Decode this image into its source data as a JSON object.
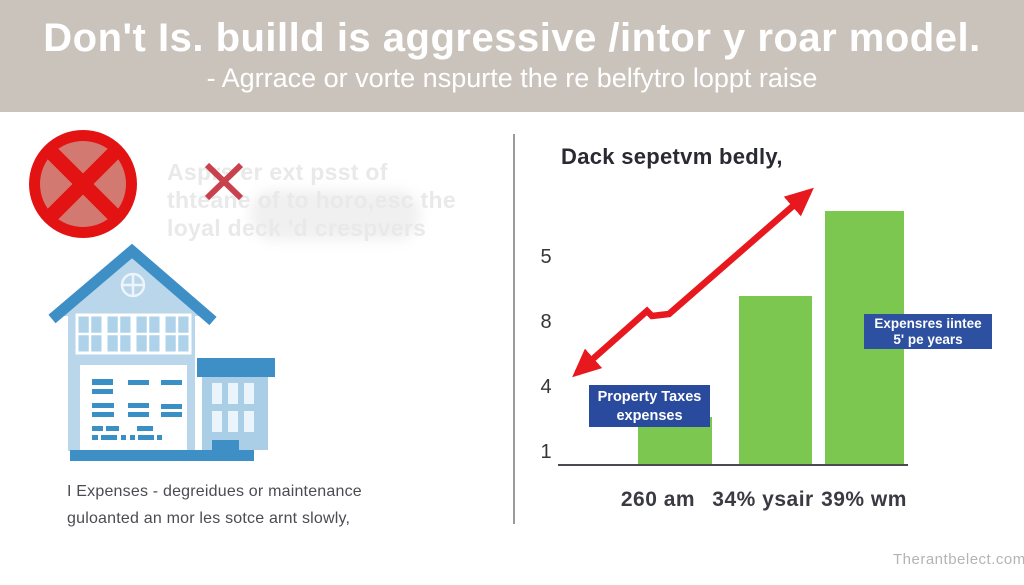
{
  "header": {
    "title": "Don't Is. builld is aggressive /intor y roar model.",
    "subtitle": "- Agrrace or vorte nspurte the re belfytro loppt raise",
    "background": "#cac3bc",
    "text_color": "#ffffff"
  },
  "left": {
    "no_symbol_icon": "red-circle-with-x",
    "no_symbol_color": "#e31313",
    "ghost_text": {
      "line1": "Asprs er ext psst of",
      "line2": "thteane of to horo,esc the",
      "line3": "loyal deck 'd crespvers"
    },
    "house_illustration": "blue-house-with-annex",
    "house_colors": {
      "dark_blue": "#3e8fc6",
      "light_blue": "#b9d6ea"
    },
    "caption_line1": "I Expenses - degreidues or maintenance",
    "caption_line2": "guloanted an mor les sotce arnt slowly,"
  },
  "chart_data": {
    "type": "bar",
    "title": "Dack sepetvm bedly,",
    "categories": [
      "260 am",
      "34% ysair",
      "39% wm"
    ],
    "values": [
      0.72,
      2.58,
      3.89
    ],
    "y_ticks": [
      "1",
      "4",
      "8",
      "5"
    ],
    "ylim": [
      0,
      4.6
    ],
    "grid": false,
    "bar_color": "#7cc750",
    "trend_arrow": {
      "color": "#e7191f",
      "shape": "double-headed rising zigzag"
    },
    "annotations": [
      {
        "line1": "Property Taxes",
        "line2": "expenses",
        "color": "#2a4b9d",
        "position": "over first bar"
      },
      {
        "line1": "Expensres iintee",
        "line2": "5' pe years",
        "color": "#2e50a0",
        "position": "right of third bar"
      }
    ]
  },
  "footer": {
    "watermark": "Therantbelect.com"
  }
}
